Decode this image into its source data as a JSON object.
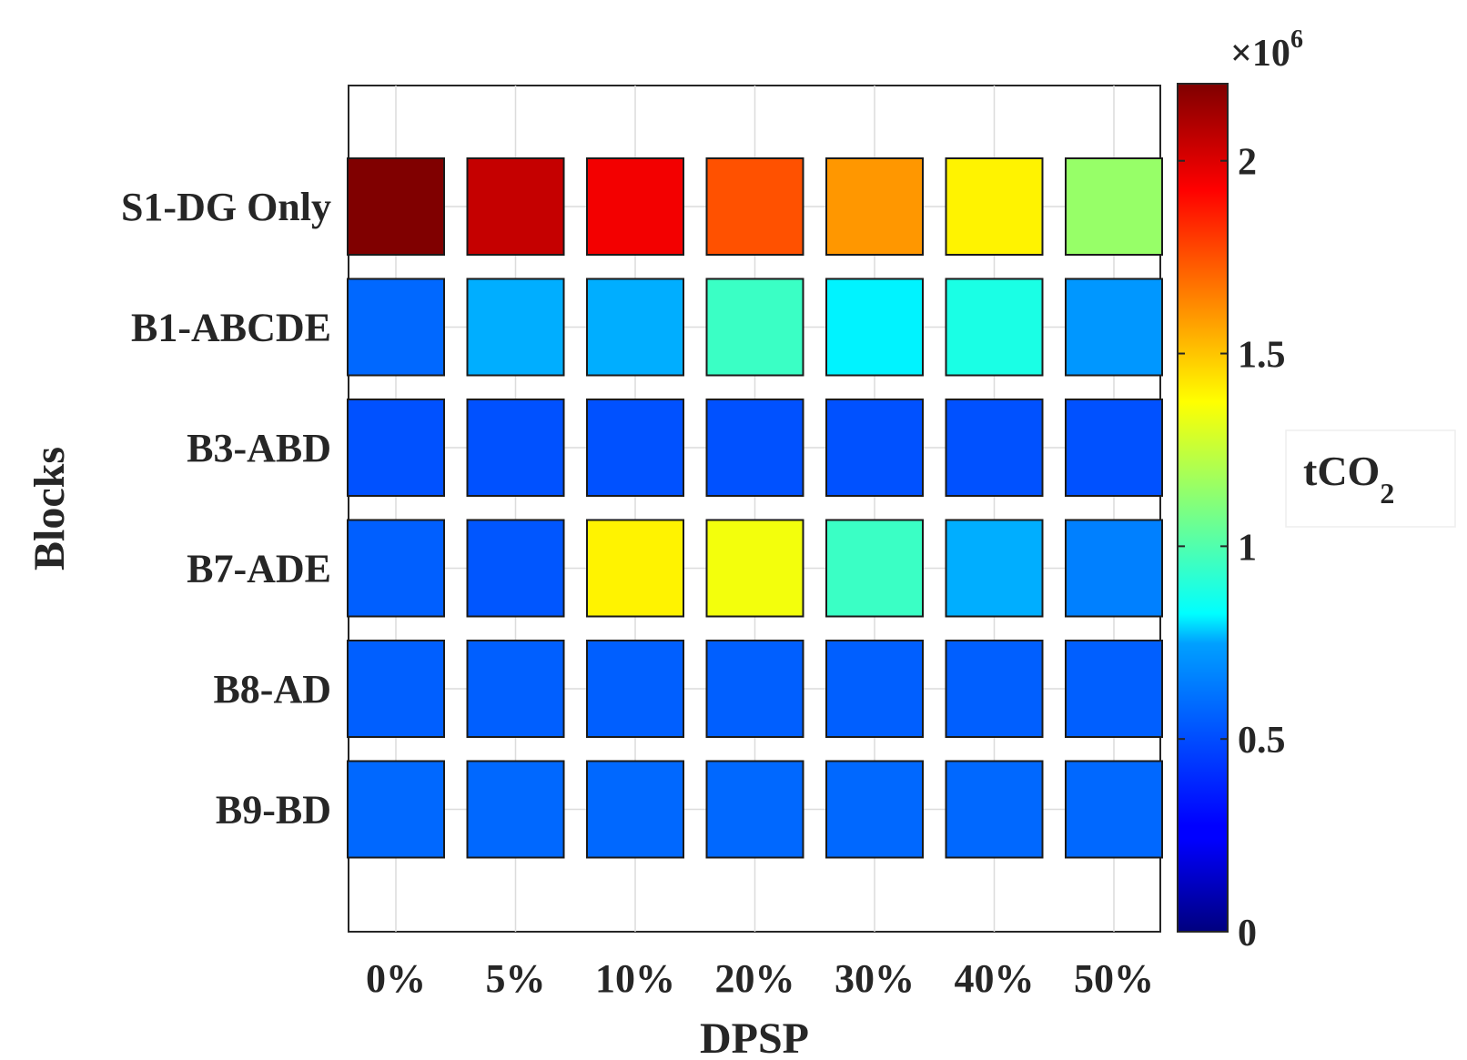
{
  "chart_data": {
    "type": "heatmap",
    "title": "",
    "xlabel": "DPSP",
    "ylabel": "Blocks",
    "x_categories": [
      "0%",
      "5%",
      "10%",
      "20%",
      "30%",
      "40%",
      "50%"
    ],
    "y_categories": [
      "S1-DG Only",
      "B1-ABCDE",
      "B3-ABD",
      "B7-ADE",
      "B8-AD",
      "B9-BD"
    ],
    "values": [
      [
        2200000,
        2050000,
        1950000,
        1750000,
        1600000,
        1400000,
        1150000
      ],
      [
        500000,
        650000,
        650000,
        950000,
        800000,
        880000,
        600000
      ],
      [
        450000,
        450000,
        450000,
        450000,
        450000,
        450000,
        450000
      ],
      [
        480000,
        460000,
        1400000,
        1350000,
        950000,
        650000,
        550000
      ],
      [
        480000,
        480000,
        480000,
        480000,
        480000,
        480000,
        480000
      ],
      [
        500000,
        500000,
        500000,
        500000,
        500000,
        500000,
        500000
      ]
    ],
    "colorbar": {
      "label_main": "tCO",
      "label_sub": "2",
      "exponent_base": "×10",
      "exponent_power": "6",
      "range": [
        0,
        2200000
      ],
      "ticks": [
        0,
        500000,
        1000000,
        1500000,
        2000000
      ],
      "tick_labels": [
        "0",
        "0.5",
        "1",
        "1.5",
        "2"
      ],
      "colormap": "jet"
    },
    "grid": true,
    "legend": "none"
  }
}
